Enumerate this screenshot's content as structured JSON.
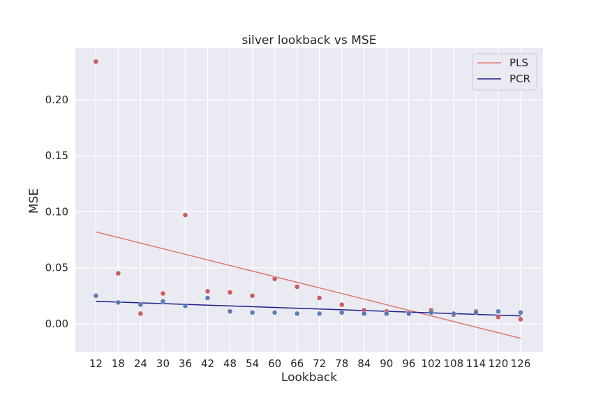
{
  "chart_data": {
    "type": "scatter",
    "title": "silver lookback vs MSE",
    "xlabel": "Lookback",
    "ylabel": "MSE",
    "x": [
      12,
      18,
      24,
      30,
      36,
      42,
      48,
      54,
      60,
      66,
      72,
      78,
      84,
      90,
      96,
      102,
      108,
      114,
      120,
      126
    ],
    "x_ticks": [
      "12",
      "18",
      "24",
      "30",
      "36",
      "42",
      "48",
      "54",
      "60",
      "66",
      "72",
      "78",
      "84",
      "90",
      "96",
      "102",
      "108",
      "114",
      "120",
      "126"
    ],
    "y_ticks": [
      "0.00",
      "0.05",
      "0.10",
      "0.15",
      "0.20"
    ],
    "ylim": [
      -0.025,
      0.246
    ],
    "xlim": [
      6.5,
      132
    ],
    "grid": true,
    "legend_position": "top-right",
    "series": [
      {
        "name": "PLS",
        "color": "#dd7878",
        "point_color": "#c44e52",
        "values": [
          0.234,
          0.045,
          0.009,
          0.027,
          0.097,
          0.029,
          0.028,
          0.025,
          0.04,
          0.033,
          0.023,
          0.017,
          0.012,
          0.011,
          0.01,
          0.012,
          0.008,
          0.011,
          0.006,
          0.004
        ],
        "fit": [
          [
            12,
            0.082
          ],
          [
            126,
            -0.013
          ]
        ]
      },
      {
        "name": "PCR",
        "color": "#1f1f8a",
        "point_color": "#4c72b0",
        "values": [
          0.025,
          0.019,
          0.017,
          0.02,
          0.016,
          0.023,
          0.011,
          0.01,
          0.01,
          0.009,
          0.009,
          0.01,
          0.009,
          0.009,
          0.009,
          0.01,
          0.009,
          0.01,
          0.011,
          0.01
        ],
        "fit": [
          [
            12,
            0.02
          ],
          [
            126,
            0.007
          ]
        ]
      }
    ]
  }
}
